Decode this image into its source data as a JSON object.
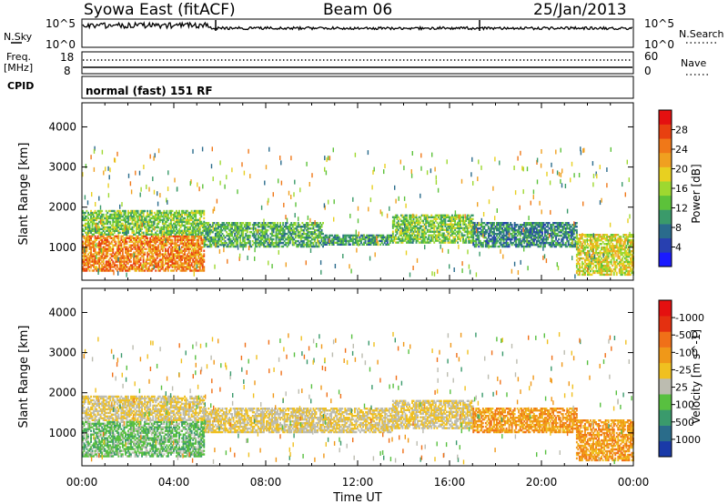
{
  "header": {
    "station": "Syowa East (fitACF)",
    "beam": "Beam 06",
    "date": "25/Jan/2013"
  },
  "top_panels": {
    "nsky_label": "N.Sky",
    "nsky_ticks": [
      "10^5",
      "10^0"
    ],
    "nsearch_label": "N.Search",
    "nsearch_ticks": [
      "10^5",
      "10^0"
    ],
    "freq_label_1": "Freq.",
    "freq_label_2": "[MHz]",
    "freq_ticks": [
      "18",
      "8"
    ],
    "nave_label": "Nave",
    "nave_ticks": [
      "60",
      "0"
    ],
    "cpid_label": "CPID",
    "cpid_text": "normal (fast) 151 RF"
  },
  "axes": {
    "x_label": "Time UT",
    "x_ticks": [
      "00:00",
      "04:00",
      "08:00",
      "12:00",
      "16:00",
      "20:00",
      "00:00"
    ],
    "y_label": "Slant Range [km]",
    "y_ticks": [
      "1000",
      "2000",
      "3000",
      "4000"
    ]
  },
  "colorbars": {
    "power": {
      "label": "Power [dB]",
      "ticks": [
        "4",
        "8",
        "12",
        "16",
        "20",
        "24",
        "28"
      ],
      "colors": [
        "#1a1aff",
        "#2840b0",
        "#2a6b8c",
        "#3a9a6a",
        "#5cc23a",
        "#9ed830",
        "#e8d020",
        "#f0a020",
        "#f07818",
        "#e84010",
        "#e41010"
      ]
    },
    "velocity": {
      "label": "Velocity [m s^-1]",
      "ticks": [
        "1000",
        "500",
        "100",
        "25",
        "-25",
        "-100",
        "-500",
        "-1000"
      ],
      "colors": [
        "#1a3aa8",
        "#2a6c8a",
        "#3a9a6c",
        "#58c040",
        "#bcbcb0",
        "#f0c020",
        "#f09818",
        "#f07018",
        "#e43010",
        "#e41010"
      ]
    }
  },
  "chart_data": {
    "type": "heatmap",
    "title": "Syowa East (fitACF) Beam 06 25/Jan/2013",
    "xlabel": "Time UT",
    "ylabel": "Slant Range [km]",
    "x_range_hours": [
      0,
      24
    ],
    "y_range_km": [
      180,
      4600
    ],
    "panels": [
      {
        "name": "Power",
        "units": "dB",
        "colorbar_range": [
          0,
          32
        ],
        "regions": [
          {
            "t0": 0.0,
            "t1": 5.3,
            "r0": 400,
            "r1": 1300,
            "value": 24
          },
          {
            "t0": 0.0,
            "t1": 5.3,
            "r0": 1300,
            "r1": 1900,
            "value": 14
          },
          {
            "t0": 5.3,
            "t1": 10.5,
            "r0": 1000,
            "r1": 1600,
            "value": 12
          },
          {
            "t0": 10.5,
            "t1": 13.5,
            "r0": 1050,
            "r1": 1300,
            "value": 10
          },
          {
            "t0": 13.5,
            "t1": 17.0,
            "r0": 1100,
            "r1": 1800,
            "value": 14
          },
          {
            "t0": 17.0,
            "t1": 21.5,
            "r0": 1000,
            "r1": 1600,
            "value": 9
          },
          {
            "t0": 21.5,
            "t1": 24.0,
            "r0": 300,
            "r1": 1300,
            "value": 18
          }
        ]
      },
      {
        "name": "Velocity",
        "units": "m s^-1",
        "colorbar_range": [
          -1000,
          1000
        ],
        "regions": [
          {
            "t0": 0.0,
            "t1": 5.3,
            "r0": 400,
            "r1": 1300,
            "value": -300
          },
          {
            "t0": 0.0,
            "t1": 5.3,
            "r0": 1300,
            "r1": 1900,
            "value": 0
          },
          {
            "t0": 5.3,
            "t1": 13.5,
            "r0": 1000,
            "r1": 1600,
            "value": 0
          },
          {
            "t0": 13.5,
            "t1": 17.0,
            "r0": 1100,
            "r1": 1800,
            "value": 0
          },
          {
            "t0": 17.0,
            "t1": 21.5,
            "r0": 1000,
            "r1": 1600,
            "value": 300
          },
          {
            "t0": 21.5,
            "t1": 24.0,
            "r0": 300,
            "r1": 1300,
            "value": 300
          }
        ]
      }
    ]
  }
}
